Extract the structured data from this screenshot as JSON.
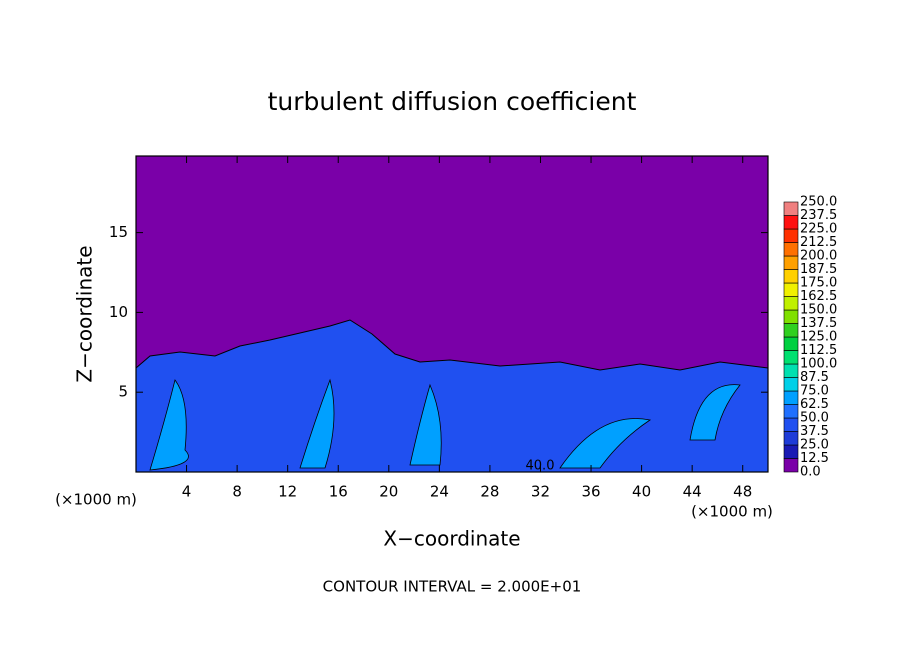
{
  "chart_data": {
    "type": "contour",
    "title": "turbulent diffusion coefficient",
    "xlabel": "X−coordinate",
    "ylabel": "Z−coordinate",
    "x_unit": "(×1000 m)",
    "y_unit": "(×1000 m)",
    "note": "CONTOUR INTERVAL = 2.000E+01",
    "contour_labels": [
      "40.0"
    ],
    "xlim": [
      0,
      50
    ],
    "ylim": [
      0,
      19.8
    ],
    "xticks": [
      4,
      8,
      12,
      16,
      20,
      24,
      28,
      32,
      36,
      40,
      44,
      48
    ],
    "yticks": [
      5,
      10,
      15
    ],
    "colorbar": {
      "levels": [
        {
          "value": 0,
          "label": "0.0"
        },
        {
          "value": 12.5,
          "label": "12.5"
        },
        {
          "value": 25,
          "label": "25.0"
        },
        {
          "value": 37.5,
          "label": "37.5"
        },
        {
          "value": 50,
          "label": "50.0"
        },
        {
          "value": 62.5,
          "label": "62.5"
        },
        {
          "value": 75,
          "label": "75.0"
        },
        {
          "value": 87.5,
          "label": "87.5"
        },
        {
          "value": 100,
          "label": "100.0"
        },
        {
          "value": 112.5,
          "label": "112.5"
        },
        {
          "value": 125,
          "label": "125.0"
        },
        {
          "value": 137.5,
          "label": "137.5"
        },
        {
          "value": 150,
          "label": "150.0"
        },
        {
          "value": 162.5,
          "label": "162.5"
        },
        {
          "value": 175,
          "label": "175.0"
        },
        {
          "value": 187.5,
          "label": "187.5"
        },
        {
          "value": 200,
          "label": "200.0"
        },
        {
          "value": 212.5,
          "label": "212.5"
        },
        {
          "value": 225,
          "label": "225.0"
        },
        {
          "value": 237.5,
          "label": "237.5"
        },
        {
          "value": 250,
          "label": "250.0"
        }
      ],
      "colors": [
        "#7a00a8",
        "#1a1ab4",
        "#1e3cd8",
        "#2050f0",
        "#2070ff",
        "#00a0ff",
        "#00d0e8",
        "#00e0b0",
        "#00e070",
        "#00d040",
        "#30d020",
        "#80e000",
        "#c0f000",
        "#f0f000",
        "#ffd000",
        "#ffa000",
        "#ff7000",
        "#ff3000",
        "#ff1010",
        "#f08080"
      ]
    }
  }
}
